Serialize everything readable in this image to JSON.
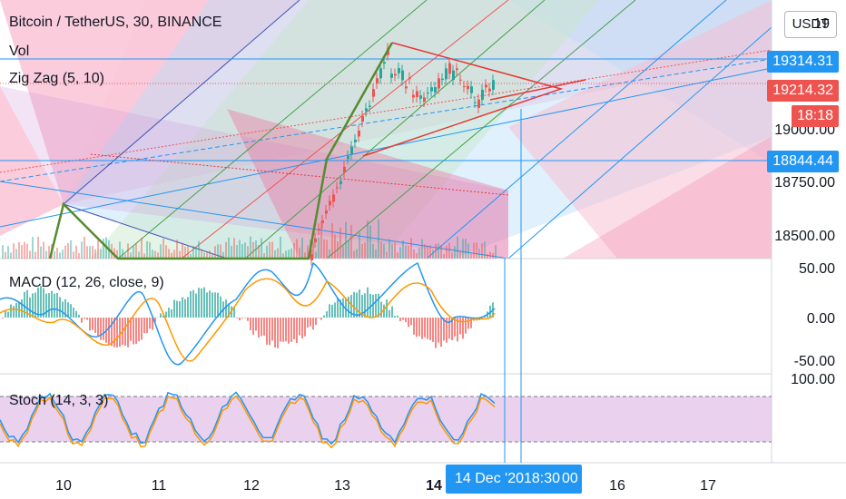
{
  "header": {
    "title": "Bitcoin / TetherUS, 30, BINANCE",
    "vol": "Vol",
    "zigzag": "Zig Zag (5, 10)",
    "currency": "USDT"
  },
  "panes": {
    "macd_label": "MACD (12, 26, close, 9)",
    "stoch_label": "Stoch (14, 3, 3)"
  },
  "price_axis": {
    "ticks": [
      "19",
      "19000.00",
      "18750.00",
      "18500.00"
    ],
    "labels": [
      {
        "text": "19314.31",
        "color": "#2196f3"
      },
      {
        "text": "19214.32",
        "color": "#ef5350"
      },
      {
        "text": "18:18",
        "color": "#ef5350"
      },
      {
        "text": "18844.44",
        "color": "#2196f3"
      }
    ]
  },
  "macd_axis": {
    "ticks": [
      "50.00",
      "0.00",
      "-50.00"
    ]
  },
  "stoch_axis": {
    "ticks": [
      "100.00"
    ]
  },
  "time_axis": {
    "ticks": [
      "10",
      "11",
      "12",
      "13",
      "14",
      "16",
      "17"
    ],
    "crosshair_date": "14 Dec '20",
    "crosshair_time": "18:30",
    "partial": "00"
  },
  "colors": {
    "up": "#26a69a",
    "down": "#ef5350",
    "blue": "#2196f3",
    "orange": "#ff9800",
    "stoch_bg": "#e1bee7"
  }
}
